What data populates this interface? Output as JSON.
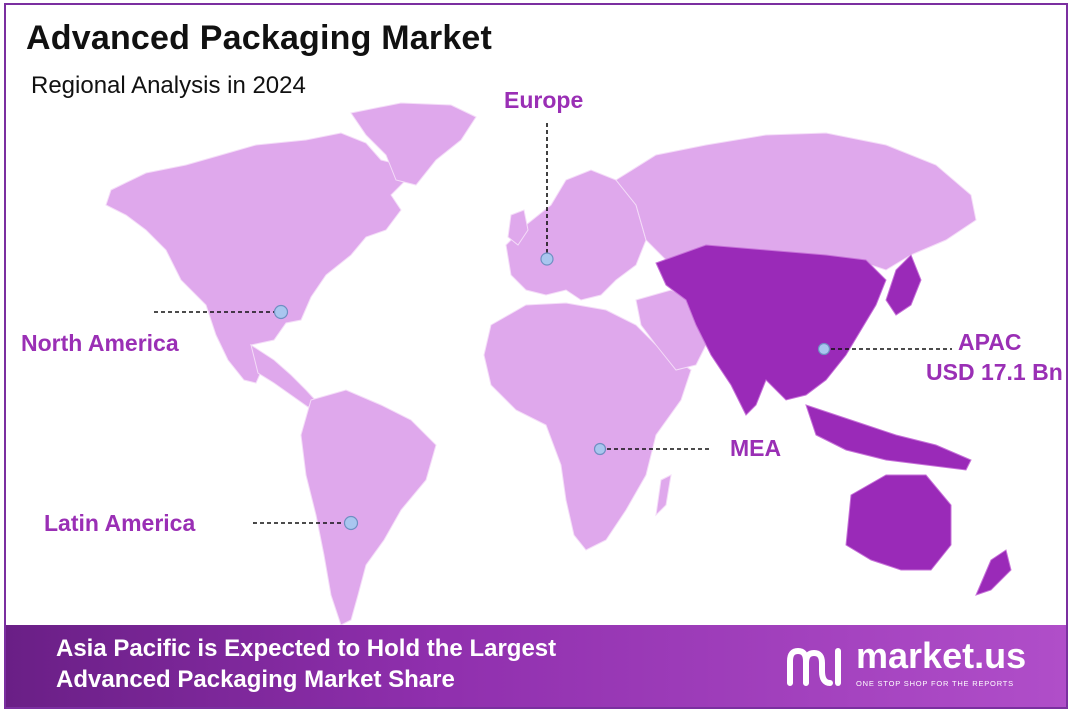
{
  "title": "Advanced Packaging Market",
  "subtitle": "Regional Analysis in 2024",
  "regions": {
    "europe": "Europe",
    "north_america": "North America",
    "latin_america": "Latin America",
    "mea": "MEA",
    "apac": "APAC",
    "apac_value": "USD 17.1 Bn"
  },
  "colors": {
    "light_region": "#dfa8ec",
    "highlight_region": "#9a2ab8",
    "label": "#9a2fb5",
    "marker": "#a9c6ef"
  },
  "footer": {
    "line1": "Asia Pacific is Expected to Hold the Largest",
    "line2": "Advanced Packaging Market Share"
  },
  "brand": {
    "name": "market.us",
    "tagline": "ONE STOP SHOP FOR THE REPORTS",
    "icon": "market-us-logo-icon"
  }
}
